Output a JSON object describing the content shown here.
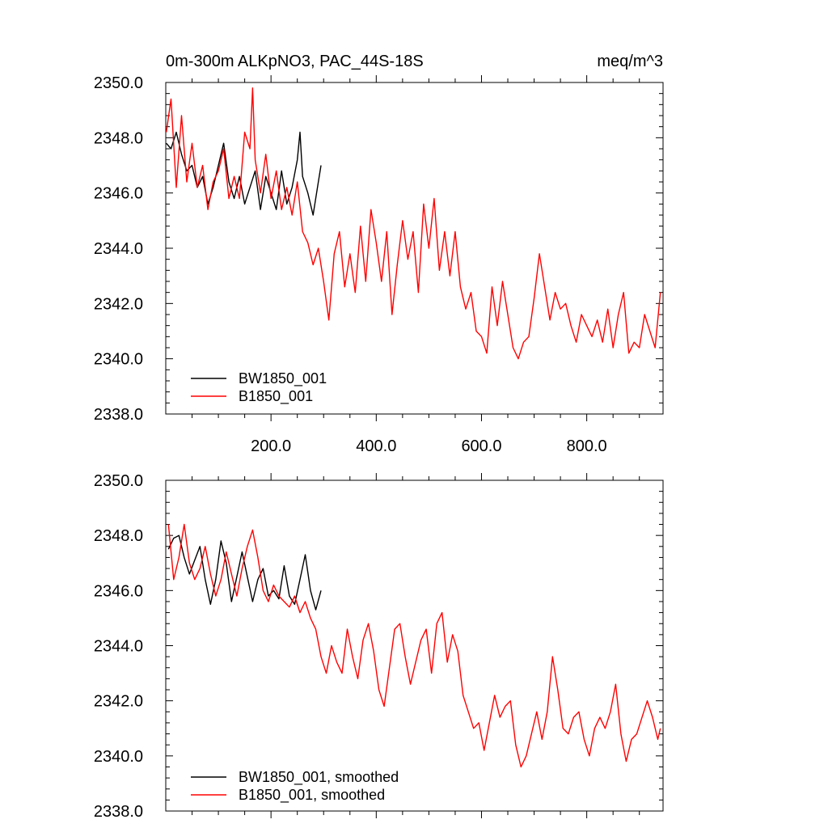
{
  "chart_data": [
    {
      "type": "line",
      "title": "0m-300m ALKpNO3, PAC_44S-18S",
      "units": "meq/m^3",
      "ylim": [
        2338.0,
        2350.0
      ],
      "xlim": [
        0,
        945
      ],
      "yticks": [
        2338.0,
        2340.0,
        2342.0,
        2344.0,
        2346.0,
        2348.0,
        2350.0
      ],
      "ytick_labels": [
        "2338.0",
        "2340.0",
        "2342.0",
        "2344.0",
        "2346.0",
        "2348.0",
        "2350.0"
      ],
      "xticks": [
        200,
        400,
        600,
        800
      ],
      "xtick_labels": [
        "200.0",
        "400.0",
        "600.0",
        "800.0"
      ],
      "legend_position": "bottom-left",
      "series": [
        {
          "name": "BW1850_001",
          "color": "#000000",
          "x": [
            1,
            10,
            20,
            30,
            40,
            50,
            60,
            70,
            80,
            90,
            100,
            110,
            120,
            130,
            140,
            150,
            160,
            170,
            180,
            190,
            200,
            210,
            220,
            230,
            240,
            250,
            255,
            260,
            270,
            280,
            290,
            295
          ],
          "y": [
            2347.8,
            2347.6,
            2348.2,
            2347.4,
            2346.8,
            2347.0,
            2346.2,
            2346.6,
            2345.6,
            2346.2,
            2347.0,
            2347.8,
            2346.4,
            2345.8,
            2346.6,
            2345.6,
            2346.2,
            2346.8,
            2345.4,
            2346.6,
            2346.0,
            2345.4,
            2346.8,
            2345.6,
            2346.2,
            2347.2,
            2348.2,
            2346.6,
            2346.0,
            2345.2,
            2346.4,
            2347.0
          ]
        },
        {
          "name": "B1850_001",
          "color": "#ff0000",
          "x": [
            1,
            10,
            20,
            30,
            40,
            50,
            60,
            70,
            80,
            90,
            100,
            110,
            120,
            130,
            140,
            150,
            160,
            165,
            170,
            180,
            190,
            200,
            210,
            220,
            230,
            240,
            250,
            260,
            270,
            280,
            290,
            300,
            310,
            320,
            330,
            340,
            350,
            360,
            370,
            380,
            390,
            400,
            410,
            420,
            430,
            440,
            450,
            460,
            470,
            480,
            490,
            500,
            510,
            520,
            530,
            540,
            550,
            560,
            570,
            580,
            590,
            600,
            610,
            620,
            630,
            640,
            650,
            660,
            670,
            680,
            690,
            700,
            710,
            720,
            730,
            740,
            750,
            760,
            770,
            780,
            790,
            800,
            810,
            820,
            830,
            840,
            850,
            860,
            870,
            880,
            890,
            900,
            910,
            920,
            930,
            940
          ],
          "y": [
            2348.2,
            2349.4,
            2346.2,
            2348.8,
            2346.4,
            2347.8,
            2346.2,
            2347.0,
            2345.4,
            2346.4,
            2346.8,
            2347.6,
            2345.8,
            2346.6,
            2345.8,
            2348.2,
            2347.6,
            2349.8,
            2347.2,
            2346.0,
            2347.4,
            2345.8,
            2346.8,
            2345.4,
            2346.2,
            2345.2,
            2346.4,
            2344.6,
            2344.2,
            2343.4,
            2344.0,
            2342.8,
            2341.4,
            2343.8,
            2344.6,
            2342.6,
            2343.8,
            2342.4,
            2344.8,
            2342.8,
            2345.4,
            2344.2,
            2342.8,
            2344.6,
            2341.6,
            2343.4,
            2345.0,
            2343.6,
            2344.6,
            2342.4,
            2345.6,
            2344.0,
            2345.8,
            2343.2,
            2344.6,
            2343.0,
            2344.6,
            2342.6,
            2341.8,
            2342.4,
            2341.0,
            2340.8,
            2340.2,
            2342.6,
            2341.2,
            2342.8,
            2341.6,
            2340.4,
            2340.0,
            2340.6,
            2340.8,
            2342.2,
            2343.8,
            2342.6,
            2341.4,
            2342.4,
            2341.8,
            2342.0,
            2341.2,
            2340.6,
            2341.6,
            2341.2,
            2340.8,
            2341.4,
            2340.6,
            2341.8,
            2340.4,
            2341.6,
            2342.4,
            2340.2,
            2340.6,
            2340.4,
            2341.6,
            2341.0,
            2340.4,
            2342.4
          ]
        }
      ]
    },
    {
      "type": "line",
      "title": "",
      "ylim": [
        2338.0,
        2350.0
      ],
      "xlim": [
        0,
        945
      ],
      "yticks": [
        2338.0,
        2340.0,
        2342.0,
        2344.0,
        2346.0,
        2348.0,
        2350.0
      ],
      "ytick_labels": [
        "2338.0",
        "2340.0",
        "2342.0",
        "2344.0",
        "2346.0",
        "2348.0",
        "2350.0"
      ],
      "xticks": [
        200,
        400,
        600,
        800
      ],
      "xtick_labels": [],
      "legend_position": "bottom-left",
      "series": [
        {
          "name": "BW1850_001, smoothed",
          "color": "#000000",
          "x": [
            5,
            15,
            25,
            35,
            45,
            55,
            65,
            75,
            85,
            95,
            105,
            115,
            125,
            135,
            145,
            155,
            165,
            175,
            185,
            195,
            205,
            215,
            225,
            235,
            245,
            255,
            265,
            275,
            285,
            295
          ],
          "y": [
            2347.5,
            2347.9,
            2348.0,
            2347.2,
            2346.6,
            2347.1,
            2347.6,
            2346.4,
            2345.5,
            2346.4,
            2347.8,
            2347.0,
            2345.6,
            2346.5,
            2347.4,
            2346.5,
            2345.6,
            2346.4,
            2346.8,
            2345.8,
            2346.0,
            2345.7,
            2346.9,
            2345.8,
            2345.5,
            2346.4,
            2347.3,
            2346.0,
            2345.3,
            2346.0
          ]
        },
        {
          "name": "B1850_001, smoothed",
          "color": "#ff0000",
          "x": [
            5,
            15,
            25,
            35,
            45,
            55,
            65,
            75,
            85,
            95,
            105,
            115,
            125,
            135,
            145,
            155,
            165,
            175,
            185,
            195,
            205,
            215,
            225,
            235,
            245,
            255,
            265,
            275,
            285,
            295,
            305,
            315,
            325,
            335,
            345,
            355,
            365,
            375,
            385,
            395,
            405,
            415,
            425,
            435,
            445,
            455,
            465,
            475,
            485,
            495,
            505,
            515,
            525,
            535,
            545,
            555,
            565,
            575,
            585,
            595,
            605,
            615,
            625,
            635,
            645,
            655,
            665,
            675,
            685,
            695,
            705,
            715,
            725,
            735,
            745,
            755,
            765,
            775,
            785,
            795,
            805,
            815,
            825,
            835,
            845,
            855,
            865,
            875,
            885,
            895,
            905,
            915,
            925,
            935,
            940
          ],
          "y": [
            2348.4,
            2346.4,
            2347.2,
            2348.4,
            2347.0,
            2346.4,
            2346.8,
            2347.6,
            2346.6,
            2345.8,
            2346.4,
            2347.4,
            2346.6,
            2345.8,
            2346.8,
            2347.6,
            2348.2,
            2347.2,
            2346.0,
            2345.6,
            2346.2,
            2345.8,
            2345.6,
            2345.4,
            2345.8,
            2345.2,
            2345.6,
            2345.0,
            2344.6,
            2343.6,
            2343.0,
            2344.0,
            2343.4,
            2343.0,
            2344.6,
            2343.6,
            2342.8,
            2344.2,
            2344.8,
            2343.8,
            2342.4,
            2341.8,
            2343.2,
            2344.6,
            2344.8,
            2343.6,
            2342.6,
            2343.4,
            2344.2,
            2344.6,
            2343.0,
            2344.8,
            2345.2,
            2343.4,
            2344.4,
            2343.8,
            2342.2,
            2341.6,
            2341.0,
            2341.2,
            2340.2,
            2341.2,
            2342.2,
            2341.4,
            2341.8,
            2342.0,
            2340.4,
            2339.6,
            2340.0,
            2340.8,
            2341.6,
            2340.6,
            2341.6,
            2343.6,
            2342.4,
            2341.0,
            2340.8,
            2341.4,
            2341.6,
            2340.6,
            2340.0,
            2341.0,
            2341.4,
            2341.0,
            2341.6,
            2342.6,
            2340.8,
            2339.8,
            2340.6,
            2340.8,
            2341.4,
            2342.0,
            2341.4,
            2340.6,
            2341.0
          ]
        }
      ]
    }
  ]
}
